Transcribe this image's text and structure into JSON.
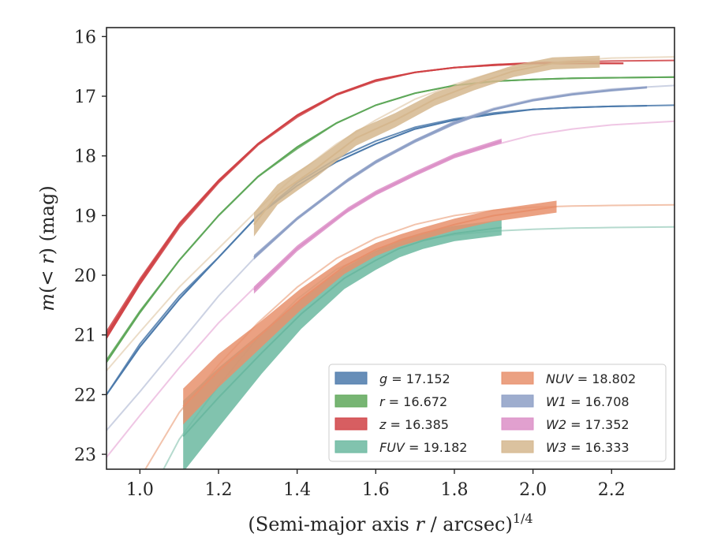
{
  "chart_data": {
    "type": "line",
    "xlabel": "(Semi-major axis r / arcsec)^1/4",
    "ylabel": "m(< r) (mag)",
    "xlim": [
      0.915,
      2.36
    ],
    "ylim": [
      23.25,
      15.85
    ],
    "y_inverted": true,
    "grid": false,
    "legend_position": "lower-right",
    "x_ticks": [
      1.0,
      1.2,
      1.4,
      1.6,
      1.8,
      2.0,
      2.2
    ],
    "x_tick_labels": [
      "1.0",
      "1.2",
      "1.4",
      "1.6",
      "1.8",
      "2.0",
      "2.2"
    ],
    "y_ticks": [
      16,
      17,
      18,
      19,
      20,
      21,
      22,
      23
    ],
    "y_tick_labels": [
      "16",
      "17",
      "18",
      "19",
      "20",
      "21",
      "22",
      "23"
    ],
    "legend": [
      {
        "label": "g = 17.152",
        "band": "g",
        "value": "17.152"
      },
      {
        "label": "r = 16.672",
        "band": "r",
        "value": "16.672"
      },
      {
        "label": "z = 16.385",
        "band": "z",
        "value": "16.385"
      },
      {
        "label": "FUV = 19.182",
        "band": "FUV",
        "value": "19.182"
      },
      {
        "label": "NUV = 18.802",
        "band": "NUV",
        "value": "18.802"
      },
      {
        "label": "W1 = 16.708",
        "band": "W1",
        "value": "16.708"
      },
      {
        "label": "W2 = 17.352",
        "band": "W2",
        "value": "17.352"
      },
      {
        "label": "W3 = 16.333",
        "band": "W3",
        "value": "16.333"
      }
    ],
    "series": [
      {
        "name": "g",
        "color": "#4c7aab",
        "model_color": "#4c7aab",
        "model": {
          "x": [
            0.915,
            1.0,
            1.1,
            1.2,
            1.3,
            1.4,
            1.5,
            1.6,
            1.7,
            1.8,
            1.9,
            2.0,
            2.1,
            2.2,
            2.36
          ],
          "y": [
            22.0,
            21.15,
            20.35,
            19.7,
            19.0,
            18.45,
            18.05,
            17.75,
            17.52,
            17.38,
            17.28,
            17.22,
            17.19,
            17.17,
            17.15
          ]
        },
        "data": {
          "x": [
            0.915,
            1.0,
            1.1,
            1.2,
            1.3,
            1.4,
            1.5,
            1.6,
            1.7,
            1.8,
            1.9,
            2.0,
            2.1,
            2.2,
            2.29
          ],
          "y": [
            22.0,
            21.2,
            20.4,
            19.7,
            19.0,
            18.5,
            18.1,
            17.8,
            17.55,
            17.4,
            17.3,
            17.22,
            17.19,
            17.17,
            17.16
          ],
          "err": [
            0.02,
            0.02,
            0.02,
            0.015,
            0.015,
            0.01,
            0.01,
            0.01,
            0.01,
            0.01,
            0.01,
            0.01,
            0.01,
            0.01,
            0.01
          ]
        }
      },
      {
        "name": "r",
        "color": "#5fa85a",
        "model_color": "#5fa85a",
        "model": {
          "x": [
            0.915,
            1.0,
            1.1,
            1.2,
            1.3,
            1.4,
            1.5,
            1.6,
            1.7,
            1.8,
            1.9,
            2.0,
            2.1,
            2.2,
            2.36
          ],
          "y": [
            21.42,
            20.6,
            19.75,
            19.0,
            18.35,
            17.88,
            17.45,
            17.15,
            16.95,
            16.82,
            16.75,
            16.72,
            16.7,
            16.69,
            16.68
          ]
        },
        "data": {
          "x": [
            0.915,
            1.0,
            1.1,
            1.2,
            1.3,
            1.4,
            1.5,
            1.6,
            1.7,
            1.8,
            1.9,
            2.0,
            2.1,
            2.2,
            2.36
          ],
          "y": [
            21.45,
            20.62,
            19.75,
            19.0,
            18.35,
            17.85,
            17.45,
            17.15,
            16.95,
            16.82,
            16.75,
            16.72,
            16.7,
            16.69,
            16.68
          ],
          "err": [
            0.03,
            0.03,
            0.02,
            0.02,
            0.02,
            0.015,
            0.015,
            0.01,
            0.01,
            0.01,
            0.01,
            0.01,
            0.01,
            0.01,
            0.01
          ]
        }
      },
      {
        "name": "z",
        "color": "#d04245",
        "model_color": "#d04245",
        "model": {
          "x": [
            0.915,
            1.0,
            1.1,
            1.2,
            1.3,
            1.4,
            1.5,
            1.6,
            1.7,
            1.8,
            1.9,
            2.0,
            2.1,
            2.2,
            2.36
          ],
          "y": [
            21.05,
            20.15,
            19.2,
            18.45,
            17.82,
            17.35,
            16.98,
            16.75,
            16.6,
            16.52,
            16.47,
            16.44,
            16.42,
            16.41,
            16.4
          ]
        },
        "data": {
          "x": [
            0.915,
            1.0,
            1.1,
            1.2,
            1.3,
            1.4,
            1.5,
            1.6,
            1.7,
            1.8,
            1.9,
            2.0,
            2.1,
            2.23
          ],
          "y": [
            21.0,
            20.1,
            19.15,
            18.42,
            17.8,
            17.32,
            16.97,
            16.73,
            16.6,
            16.52,
            16.48,
            16.45,
            16.45,
            16.45
          ],
          "err": [
            0.08,
            0.06,
            0.04,
            0.03,
            0.02,
            0.02,
            0.02,
            0.015,
            0.015,
            0.015,
            0.015,
            0.015,
            0.015,
            0.015
          ]
        }
      },
      {
        "name": "FUV",
        "color": "#6bb8a0",
        "model_color": "#a8d4c5",
        "model": {
          "x": [
            0.915,
            1.0,
            1.1,
            1.2,
            1.3,
            1.4,
            1.5,
            1.6,
            1.7,
            1.8,
            1.9,
            2.0,
            2.1,
            2.2,
            2.36
          ],
          "y": [
            25.0,
            24.0,
            22.75,
            21.85,
            21.05,
            20.4,
            19.9,
            19.6,
            19.42,
            19.32,
            19.26,
            19.23,
            19.21,
            19.2,
            19.19
          ]
        },
        "data": {
          "x": [
            1.11,
            1.2,
            1.31,
            1.41,
            1.52,
            1.6,
            1.66,
            1.72,
            1.8,
            1.92
          ],
          "y": [
            22.7,
            22.05,
            21.3,
            20.65,
            20.05,
            19.75,
            19.55,
            19.42,
            19.3,
            19.2
          ],
          "err": [
            0.6,
            0.5,
            0.35,
            0.25,
            0.18,
            0.16,
            0.15,
            0.14,
            0.13,
            0.13
          ]
        }
      },
      {
        "name": "NUV",
        "color": "#e8906c",
        "model_color": "#f0b89d",
        "model": {
          "x": [
            0.915,
            1.0,
            1.1,
            1.2,
            1.3,
            1.4,
            1.5,
            1.6,
            1.7,
            1.8,
            1.9,
            2.0,
            2.1,
            2.2,
            2.36
          ],
          "y": [
            24.4,
            23.4,
            22.3,
            21.5,
            20.8,
            20.2,
            19.72,
            19.38,
            19.15,
            19.0,
            18.91,
            18.86,
            18.84,
            18.83,
            18.82
          ]
        },
        "data": {
          "x": [
            1.11,
            1.2,
            1.31,
            1.41,
            1.52,
            1.6,
            1.66,
            1.72,
            1.8,
            1.9,
            2.06
          ],
          "y": [
            22.2,
            21.6,
            20.98,
            20.4,
            19.85,
            19.57,
            19.42,
            19.3,
            19.15,
            19.0,
            18.85
          ],
          "err": [
            0.3,
            0.28,
            0.22,
            0.18,
            0.13,
            0.11,
            0.1,
            0.1,
            0.1,
            0.1,
            0.1
          ]
        }
      },
      {
        "name": "W1",
        "color": "#8d9fc6",
        "model_color": "#c3cade",
        "model": {
          "x": [
            0.915,
            1.0,
            1.1,
            1.2,
            1.3,
            1.4,
            1.5,
            1.6,
            1.7,
            1.8,
            1.9,
            2.0,
            2.1,
            2.2,
            2.36
          ],
          "y": [
            22.6,
            21.95,
            21.15,
            20.35,
            19.65,
            19.05,
            18.55,
            18.12,
            17.75,
            17.42,
            17.2,
            17.05,
            16.95,
            16.88,
            16.82
          ]
        },
        "data": {
          "x": [
            1.29,
            1.4,
            1.53,
            1.6,
            1.7,
            1.8,
            1.9,
            2.0,
            2.1,
            2.2,
            2.29
          ],
          "y": [
            19.7,
            19.05,
            18.4,
            18.1,
            17.75,
            17.45,
            17.22,
            17.07,
            16.97,
            16.9,
            16.85
          ],
          "err": [
            0.04,
            0.03,
            0.03,
            0.03,
            0.03,
            0.03,
            0.02,
            0.02,
            0.02,
            0.02,
            0.02
          ]
        }
      },
      {
        "name": "W2",
        "color": "#dc8fc7",
        "model_color": "#ecbcdf",
        "model": {
          "x": [
            0.915,
            1.0,
            1.1,
            1.2,
            1.3,
            1.4,
            1.5,
            1.6,
            1.7,
            1.8,
            1.9,
            2.0,
            2.1,
            2.2,
            2.36
          ],
          "y": [
            23.05,
            22.35,
            21.55,
            20.8,
            20.15,
            19.55,
            19.05,
            18.65,
            18.32,
            18.02,
            17.82,
            17.65,
            17.55,
            17.48,
            17.42
          ]
        },
        "data": {
          "x": [
            1.29,
            1.4,
            1.53,
            1.6,
            1.7,
            1.8,
            1.92
          ],
          "y": [
            20.25,
            19.55,
            18.9,
            18.62,
            18.3,
            18.0,
            17.75
          ],
          "err": [
            0.06,
            0.05,
            0.04,
            0.04,
            0.04,
            0.04,
            0.04
          ]
        }
      },
      {
        "name": "W3",
        "color": "#d5b78e",
        "model_color": "#e8d6bd",
        "model": {
          "x": [
            0.915,
            1.0,
            1.1,
            1.2,
            1.3,
            1.4,
            1.5,
            1.6,
            1.7,
            1.8,
            1.9,
            2.0,
            2.1,
            2.2,
            2.36
          ],
          "y": [
            21.6,
            20.95,
            20.2,
            19.55,
            18.9,
            18.3,
            17.8,
            17.4,
            17.05,
            16.8,
            16.6,
            16.47,
            16.4,
            16.36,
            16.34
          ]
        },
        "data": {
          "x": [
            1.29,
            1.35,
            1.45,
            1.55,
            1.65,
            1.75,
            1.85,
            1.95,
            2.05,
            2.17
          ],
          "y": [
            19.15,
            18.65,
            18.2,
            17.7,
            17.4,
            17.05,
            16.8,
            16.58,
            16.45,
            16.42
          ],
          "err": [
            0.2,
            0.17,
            0.15,
            0.13,
            0.12,
            0.11,
            0.1,
            0.1,
            0.1,
            0.1
          ]
        }
      }
    ]
  }
}
